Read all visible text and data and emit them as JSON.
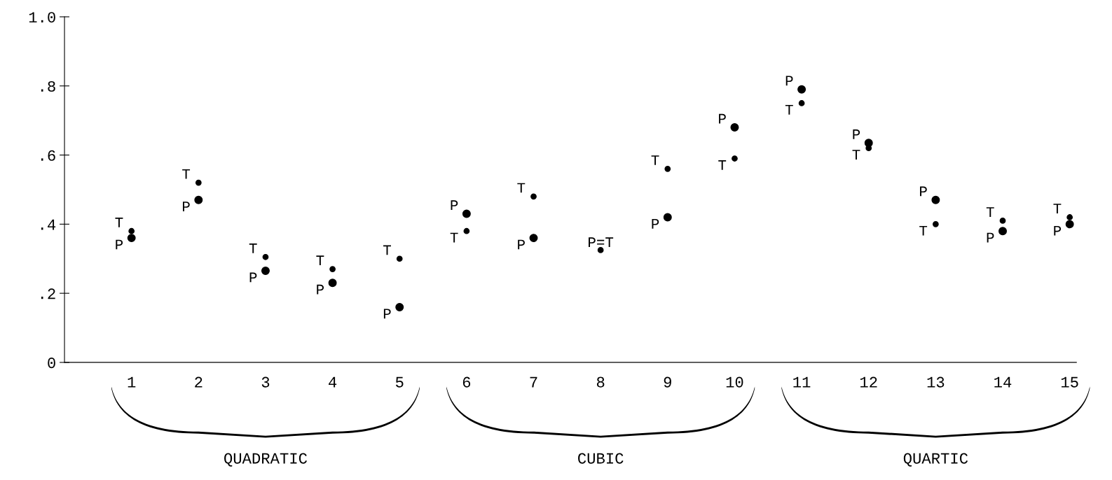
{
  "chart_data": {
    "type": "scatter",
    "categories": [
      "1",
      "2",
      "3",
      "4",
      "5",
      "6",
      "7",
      "8",
      "9",
      "10",
      "11",
      "12",
      "13",
      "14",
      "15"
    ],
    "series": [
      {
        "name": "T",
        "color": "#000000",
        "values": [
          0.38,
          0.52,
          0.305,
          0.27,
          0.3,
          0.38,
          0.48,
          0.325,
          0.56,
          0.59,
          0.75,
          0.62,
          0.4,
          0.41,
          0.42
        ]
      },
      {
        "name": "P",
        "color": "#000000",
        "values": [
          0.36,
          0.47,
          0.265,
          0.23,
          0.16,
          0.43,
          0.36,
          null,
          0.42,
          0.68,
          0.79,
          0.635,
          0.47,
          0.38,
          0.4
        ]
      }
    ],
    "ylim": [
      0,
      1.0
    ],
    "yticks": [
      0,
      {
        "value": 0.2,
        "label": ".2"
      },
      {
        "value": 0.4,
        "label": ".4"
      },
      {
        "value": 0.6,
        "label": ".6"
      },
      {
        "value": 0.8,
        "label": ".8"
      },
      {
        "value": 1.0,
        "label": "1.0"
      }
    ],
    "annotations": [
      {
        "text": "P=T",
        "x": "8",
        "y": 0.325
      },
      "QUADRATIC",
      "CUBIC",
      "QUARTIC"
    ],
    "marker": "circle",
    "grid": false,
    "legend": false
  }
}
